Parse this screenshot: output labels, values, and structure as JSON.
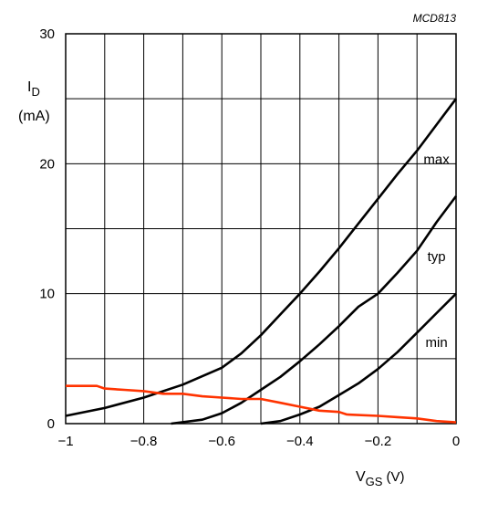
{
  "figure_code": "MCD813",
  "chart_data": {
    "type": "line",
    "title": "",
    "xlabel": {
      "main": "V",
      "sub": "GS",
      "unit": "(V)"
    },
    "ylabel": {
      "main": "I",
      "sub": "D",
      "unit": "(mA)"
    },
    "xlim": [
      -1,
      0
    ],
    "ylim": [
      0,
      30
    ],
    "x_ticks": [
      -1,
      -0.8,
      -0.6,
      -0.4,
      -0.2,
      0
    ],
    "x_tick_labels": [
      "−1",
      "−0.8",
      "−0.6",
      "−0.4",
      "−0.2",
      "0"
    ],
    "y_ticks": [
      0,
      10,
      20,
      30
    ],
    "y_tick_labels": [
      "0",
      "10",
      "20",
      "30"
    ],
    "grid": {
      "x_step": 0.1,
      "y_step": 5
    },
    "series": [
      {
        "name": "max",
        "color": "#000000",
        "points": [
          [
            -1,
            0.6
          ],
          [
            -0.9,
            1.2
          ],
          [
            -0.8,
            2.0
          ],
          [
            -0.7,
            3.0
          ],
          [
            -0.6,
            4.3
          ],
          [
            -0.55,
            5.4
          ],
          [
            -0.5,
            6.8
          ],
          [
            -0.45,
            8.4
          ],
          [
            -0.4,
            10.0
          ],
          [
            -0.35,
            11.7
          ],
          [
            -0.3,
            13.5
          ],
          [
            -0.25,
            15.4
          ],
          [
            -0.2,
            17.3
          ],
          [
            -0.15,
            19.2
          ],
          [
            -0.1,
            21.0
          ],
          [
            -0.05,
            23.0
          ],
          [
            0,
            25.0
          ]
        ]
      },
      {
        "name": "typ",
        "color": "#000000",
        "points": [
          [
            -0.73,
            0
          ],
          [
            -0.65,
            0.3
          ],
          [
            -0.6,
            0.8
          ],
          [
            -0.55,
            1.6
          ],
          [
            -0.5,
            2.6
          ],
          [
            -0.45,
            3.6
          ],
          [
            -0.4,
            4.8
          ],
          [
            -0.35,
            6.1
          ],
          [
            -0.3,
            7.5
          ],
          [
            -0.25,
            9.0
          ],
          [
            -0.2,
            10.0
          ],
          [
            -0.15,
            11.6
          ],
          [
            -0.1,
            13.3
          ],
          [
            -0.05,
            15.5
          ],
          [
            0,
            17.5
          ]
        ]
      },
      {
        "name": "min",
        "color": "#000000",
        "points": [
          [
            -0.5,
            0
          ],
          [
            -0.45,
            0.2
          ],
          [
            -0.4,
            0.7
          ],
          [
            -0.35,
            1.3
          ],
          [
            -0.3,
            2.2
          ],
          [
            -0.25,
            3.1
          ],
          [
            -0.2,
            4.2
          ],
          [
            -0.15,
            5.5
          ],
          [
            -0.1,
            7.0
          ],
          [
            -0.05,
            8.5
          ],
          [
            0,
            10.0
          ]
        ]
      },
      {
        "name": "",
        "color": "#ff3300",
        "points": [
          [
            -1,
            2.9
          ],
          [
            -0.92,
            2.9
          ],
          [
            -0.9,
            2.7
          ],
          [
            -0.85,
            2.6
          ],
          [
            -0.8,
            2.5
          ],
          [
            -0.75,
            2.3
          ],
          [
            -0.7,
            2.3
          ],
          [
            -0.65,
            2.1
          ],
          [
            -0.6,
            2.0
          ],
          [
            -0.55,
            1.9
          ],
          [
            -0.5,
            1.9
          ],
          [
            -0.45,
            1.6
          ],
          [
            -0.4,
            1.3
          ],
          [
            -0.35,
            1.0
          ],
          [
            -0.3,
            0.9
          ],
          [
            -0.28,
            0.7
          ],
          [
            -0.2,
            0.6
          ],
          [
            -0.15,
            0.5
          ],
          [
            -0.1,
            0.4
          ],
          [
            -0.05,
            0.2
          ],
          [
            0,
            0.1
          ]
        ]
      }
    ],
    "curve_labels": [
      {
        "text": "max",
        "x": -0.05,
        "y": 20
      },
      {
        "text": "typ",
        "x": -0.05,
        "y": 12.5
      },
      {
        "text": "min",
        "x": -0.05,
        "y": 5.9
      }
    ]
  }
}
